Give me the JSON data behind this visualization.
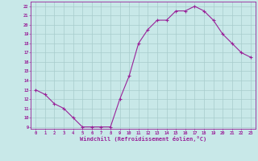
{
  "x": [
    0,
    1,
    2,
    3,
    4,
    5,
    6,
    7,
    8,
    9,
    10,
    11,
    12,
    13,
    14,
    15,
    16,
    17,
    18,
    19,
    20,
    21,
    22,
    23
  ],
  "y": [
    13,
    12.5,
    11.5,
    11,
    10,
    9,
    9,
    9,
    9,
    12,
    14.5,
    18,
    19.5,
    20.5,
    20.5,
    21.5,
    21.5,
    22,
    21.5,
    20.5,
    19,
    18,
    17,
    16.5
  ],
  "line_color": "#992299",
  "marker": "+",
  "marker_size": 3,
  "marker_linewidth": 0.8,
  "linewidth": 0.8,
  "background_color": "#c8e8e8",
  "grid_color": "#a8cccc",
  "xlabel": "Windchill (Refroidissement éolien,°C)",
  "xlabel_color": "#992299",
  "ylabel_ticks": [
    9,
    10,
    11,
    12,
    13,
    14,
    15,
    16,
    17,
    18,
    19,
    20,
    21,
    22
  ],
  "ylim": [
    8.8,
    22.5
  ],
  "xlim": [
    -0.5,
    23.5
  ],
  "tick_color": "#992299",
  "axis_spine_color": "#992299",
  "tick_fontsize": 4.0,
  "xlabel_fontsize": 5.0
}
